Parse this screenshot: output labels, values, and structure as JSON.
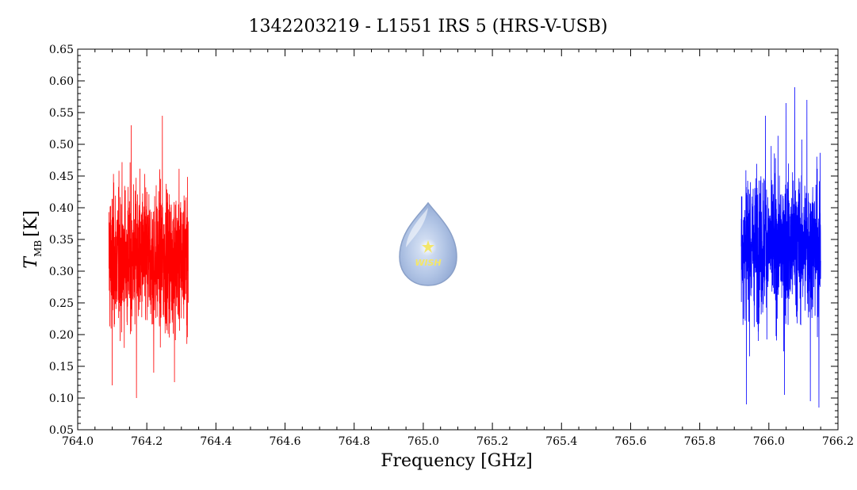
{
  "chart_data": {
    "type": "line",
    "title": "1342203219 - L1551 IRS 5 (HRS-V-USB)",
    "xlabel": "Frequency [GHz]",
    "ylabel_main": "T",
    "ylabel_sub": "MB",
    "ylabel_unit": "[K]",
    "xlim": [
      764.0,
      766.2
    ],
    "ylim": [
      0.05,
      0.65
    ],
    "x_ticks": [
      764.0,
      764.2,
      764.4,
      764.6,
      764.8,
      765.0,
      765.2,
      765.4,
      765.6,
      765.8,
      766.0,
      766.2
    ],
    "x_tick_labels": [
      "764.0",
      "764.2",
      "764.4",
      "764.6",
      "764.8",
      "765.0",
      "765.2",
      "765.4",
      "765.6",
      "765.8",
      "766.0",
      "766.2"
    ],
    "y_ticks": [
      0.05,
      0.1,
      0.15,
      0.2,
      0.25,
      0.3,
      0.35,
      0.4,
      0.45,
      0.5,
      0.55,
      0.6,
      0.65
    ],
    "y_tick_labels": [
      "0.05",
      "0.10",
      "0.15",
      "0.20",
      "0.25",
      "0.30",
      "0.35",
      "0.40",
      "0.45",
      "0.50",
      "0.55",
      "0.60",
      "0.65"
    ],
    "grid": false,
    "series": [
      {
        "color": "#ff0000",
        "x_range": [
          764.09,
          764.32
        ],
        "mean": 0.32,
        "min": 0.1,
        "max": 0.545,
        "spikes": [
          [
            764.155,
            0.53
          ],
          [
            764.245,
            0.545
          ],
          [
            764.17,
            0.1
          ],
          [
            764.1,
            0.12
          ],
          [
            764.28,
            0.125
          ],
          [
            764.22,
            0.14
          ]
        ]
      },
      {
        "color": "#0000ff",
        "x_range": [
          765.92,
          766.15
        ],
        "mean": 0.34,
        "min": 0.085,
        "max": 0.59,
        "spikes": [
          [
            766.075,
            0.59
          ],
          [
            766.11,
            0.57
          ],
          [
            766.05,
            0.565
          ],
          [
            765.99,
            0.545
          ],
          [
            765.935,
            0.09
          ],
          [
            766.145,
            0.085
          ],
          [
            766.12,
            0.095
          ],
          [
            766.045,
            0.105
          ]
        ]
      }
    ]
  },
  "watermark": {
    "text": "WISH",
    "icon": "water-drop-icon"
  }
}
